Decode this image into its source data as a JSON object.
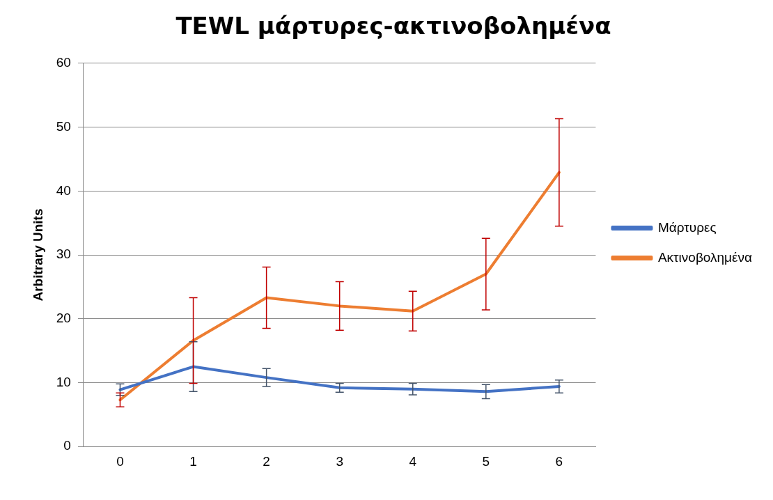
{
  "chart_data": {
    "type": "line",
    "title": "TEWL μάρτυρες-ακτινοβολημένα",
    "ylabel": "Arbitrary Units",
    "categories": [
      "0",
      "1",
      "2",
      "3",
      "4",
      "5",
      "6"
    ],
    "series": [
      {
        "name": "Μάρτυρες",
        "color": "#4472c4",
        "values": [
          8.9,
          12.5,
          10.8,
          9.2,
          9.0,
          8.6,
          9.4
        ],
        "errors": [
          0.9,
          3.9,
          1.4,
          0.7,
          0.9,
          1.1,
          1.0
        ]
      },
      {
        "name": "Ακτινοβολημένα",
        "color": "#ed7d31",
        "values": [
          7.3,
          16.6,
          23.3,
          22.0,
          21.2,
          27.0,
          42.9
        ],
        "errors": [
          1.1,
          6.7,
          4.8,
          3.8,
          3.1,
          5.6,
          8.4
        ]
      }
    ],
    "ylim": [
      0,
      60
    ],
    "yticks": [
      0,
      10,
      20,
      30,
      40,
      50,
      60
    ],
    "grid": "y",
    "legend": "right",
    "line_style": "solid"
  }
}
